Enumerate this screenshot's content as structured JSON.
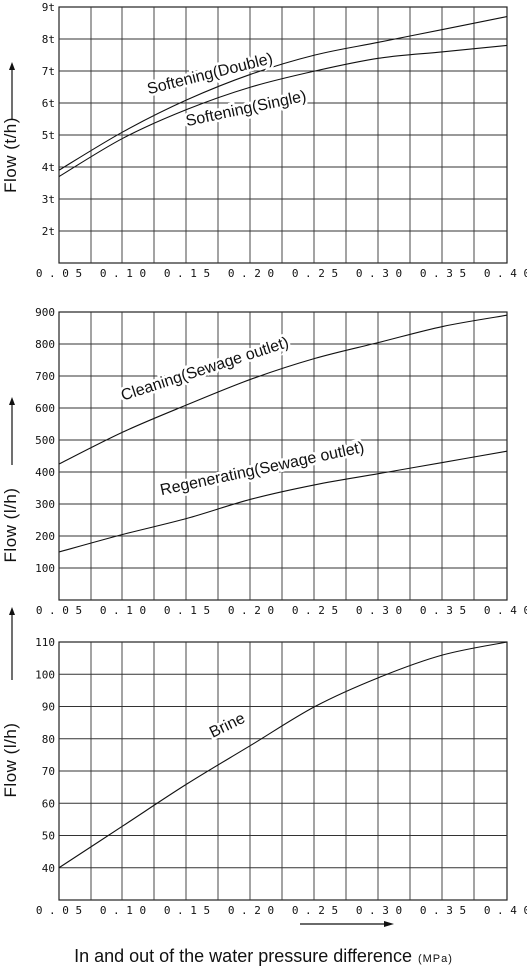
{
  "chart_data": [
    {
      "type": "line",
      "ylabel": "Flow (t/h)",
      "xlim": [
        0.05,
        0.4
      ],
      "ylim": [
        1,
        9
      ],
      "x_ticks": [
        "0.05",
        "0.10",
        "0.15",
        "0.20",
        "0.25",
        "0.30",
        "0.35",
        "0.40"
      ],
      "y_ticks": [
        {
          "value": 2,
          "label": "2t"
        },
        {
          "value": 3,
          "label": "3t"
        },
        {
          "value": 4,
          "label": "4t"
        },
        {
          "value": 5,
          "label": "5t"
        },
        {
          "value": 6,
          "label": "6t"
        },
        {
          "value": 7,
          "label": "7t"
        },
        {
          "value": 8,
          "label": "8t"
        },
        {
          "value": 9,
          "label": "9t"
        }
      ],
      "grid": true,
      "series": [
        {
          "name": "Softening(Double)",
          "x": [
            0.05,
            0.1,
            0.15,
            0.2,
            0.25,
            0.3,
            0.35,
            0.4
          ],
          "y": [
            3.9,
            5.1,
            6.1,
            6.9,
            7.5,
            7.9,
            8.3,
            8.7
          ]
        },
        {
          "name": "Softening(Single)",
          "x": [
            0.05,
            0.1,
            0.15,
            0.2,
            0.25,
            0.3,
            0.35,
            0.4
          ],
          "y": [
            3.7,
            4.9,
            5.8,
            6.5,
            7.0,
            7.4,
            7.6,
            7.8
          ]
        }
      ]
    },
    {
      "type": "line",
      "ylabel": "Flow (l/h)",
      "xlim": [
        0.05,
        0.4
      ],
      "ylim": [
        0,
        900
      ],
      "x_ticks": [
        "0.05",
        "0.10",
        "0.15",
        "0.20",
        "0.25",
        "0.30",
        "0.35",
        "0.40"
      ],
      "y_ticks": [
        {
          "value": 100,
          "label": "100"
        },
        {
          "value": 200,
          "label": "200"
        },
        {
          "value": 300,
          "label": "300"
        },
        {
          "value": 400,
          "label": "400"
        },
        {
          "value": 500,
          "label": "500"
        },
        {
          "value": 600,
          "label": "600"
        },
        {
          "value": 700,
          "label": "700"
        },
        {
          "value": 800,
          "label": "800"
        },
        {
          "value": 900,
          "label": "900"
        }
      ],
      "grid": true,
      "series": [
        {
          "name": "Cleaning(Sewage outlet)",
          "x": [
            0.05,
            0.1,
            0.15,
            0.2,
            0.25,
            0.3,
            0.35,
            0.4
          ],
          "y": [
            425,
            525,
            610,
            690,
            755,
            805,
            855,
            890
          ]
        },
        {
          "name": "Regenerating(Sewage outlet)",
          "x": [
            0.05,
            0.1,
            0.15,
            0.2,
            0.25,
            0.3,
            0.35,
            0.4
          ],
          "y": [
            150,
            205,
            255,
            315,
            360,
            395,
            430,
            465
          ]
        }
      ]
    },
    {
      "type": "line",
      "ylabel": "Flow (l/h)",
      "xlim": [
        0.05,
        0.4
      ],
      "ylim": [
        30,
        110
      ],
      "x_ticks": [
        "0.05",
        "0.10",
        "0.15",
        "0.20",
        "0.25",
        "0.30",
        "0.35",
        "0.40"
      ],
      "y_ticks": [
        {
          "value": 40,
          "label": "40"
        },
        {
          "value": 50,
          "label": "50"
        },
        {
          "value": 60,
          "label": "60"
        },
        {
          "value": 70,
          "label": "70"
        },
        {
          "value": 80,
          "label": "80"
        },
        {
          "value": 90,
          "label": "90"
        },
        {
          "value": 100,
          "label": "100"
        },
        {
          "value": 110,
          "label": "110"
        }
      ],
      "grid": true,
      "series": [
        {
          "name": "Brine",
          "x": [
            0.05,
            0.1,
            0.15,
            0.2,
            0.25,
            0.3,
            0.35,
            0.4
          ],
          "y": [
            40,
            53,
            66,
            78,
            90,
            99,
            106,
            110
          ]
        }
      ]
    }
  ],
  "x_axis_title": "In and out of the water pressure difference",
  "x_axis_unit": "(MPa)"
}
